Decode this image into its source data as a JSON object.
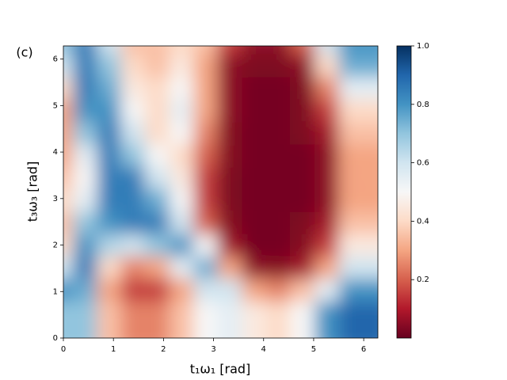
{
  "chart_data": {
    "type": "heatmap",
    "panel_label": "(c)",
    "xlabel": "t₁ω₁ [rad]",
    "ylabel": "t₃ω₃ [rad]",
    "colormap": "RdBu",
    "xlim": [
      0,
      6.283
    ],
    "ylim": [
      0,
      6.283
    ],
    "xticks": [
      0,
      1,
      2,
      3,
      4,
      5,
      6
    ],
    "yticks": [
      0,
      1,
      2,
      3,
      4,
      5,
      6
    ],
    "x": [
      0.24,
      0.73,
      1.21,
      1.69,
      2.17,
      2.66,
      3.14,
      3.62,
      4.11,
      4.59,
      5.07,
      5.56,
      6.04
    ],
    "y": [
      6.04,
      5.56,
      5.07,
      4.59,
      4.11,
      3.62,
      3.14,
      2.66,
      2.17,
      1.69,
      1.21,
      0.73,
      0.24
    ],
    "z": [
      [
        0.7,
        0.85,
        0.6,
        0.35,
        0.35,
        0.4,
        0.35,
        0.15,
        0.05,
        0.05,
        0.2,
        0.6,
        0.8
      ],
      [
        0.6,
        0.85,
        0.7,
        0.4,
        0.35,
        0.45,
        0.3,
        0.05,
        0.03,
        0.03,
        0.05,
        0.4,
        0.75
      ],
      [
        0.4,
        0.85,
        0.75,
        0.45,
        0.4,
        0.5,
        0.3,
        0.05,
        0.02,
        0.02,
        0.03,
        0.25,
        0.55
      ],
      [
        0.3,
        0.8,
        0.8,
        0.5,
        0.4,
        0.55,
        0.3,
        0.05,
        0.02,
        0.02,
        0.03,
        0.15,
        0.4
      ],
      [
        0.3,
        0.7,
        0.85,
        0.6,
        0.4,
        0.5,
        0.25,
        0.04,
        0.02,
        0.02,
        0.03,
        0.08,
        0.35
      ],
      [
        0.3,
        0.55,
        0.85,
        0.7,
        0.5,
        0.4,
        0.2,
        0.04,
        0.02,
        0.02,
        0.02,
        0.05,
        0.3
      ],
      [
        0.35,
        0.5,
        0.85,
        0.85,
        0.6,
        0.45,
        0.15,
        0.03,
        0.02,
        0.02,
        0.02,
        0.05,
        0.3
      ],
      [
        0.4,
        0.55,
        0.85,
        0.85,
        0.75,
        0.5,
        0.15,
        0.03,
        0.02,
        0.02,
        0.02,
        0.05,
        0.3
      ],
      [
        0.35,
        0.7,
        0.8,
        0.85,
        0.85,
        0.6,
        0.2,
        0.04,
        0.02,
        0.02,
        0.03,
        0.08,
        0.35
      ],
      [
        0.4,
        0.8,
        0.65,
        0.6,
        0.7,
        0.8,
        0.5,
        0.08,
        0.02,
        0.02,
        0.04,
        0.15,
        0.45
      ],
      [
        0.6,
        0.85,
        0.4,
        0.25,
        0.3,
        0.55,
        0.75,
        0.3,
        0.05,
        0.04,
        0.08,
        0.3,
        0.6
      ],
      [
        0.8,
        0.75,
        0.3,
        0.15,
        0.15,
        0.3,
        0.6,
        0.6,
        0.3,
        0.25,
        0.35,
        0.55,
        0.8
      ],
      [
        0.7,
        0.7,
        0.35,
        0.25,
        0.25,
        0.35,
        0.5,
        0.55,
        0.45,
        0.4,
        0.5,
        0.8,
        0.9
      ]
    ],
    "clim": [
      0,
      1
    ],
    "cticks": [
      0.2,
      0.4,
      0.6,
      0.8,
      {
        "value": 1,
        "label": "1.0"
      }
    ]
  }
}
